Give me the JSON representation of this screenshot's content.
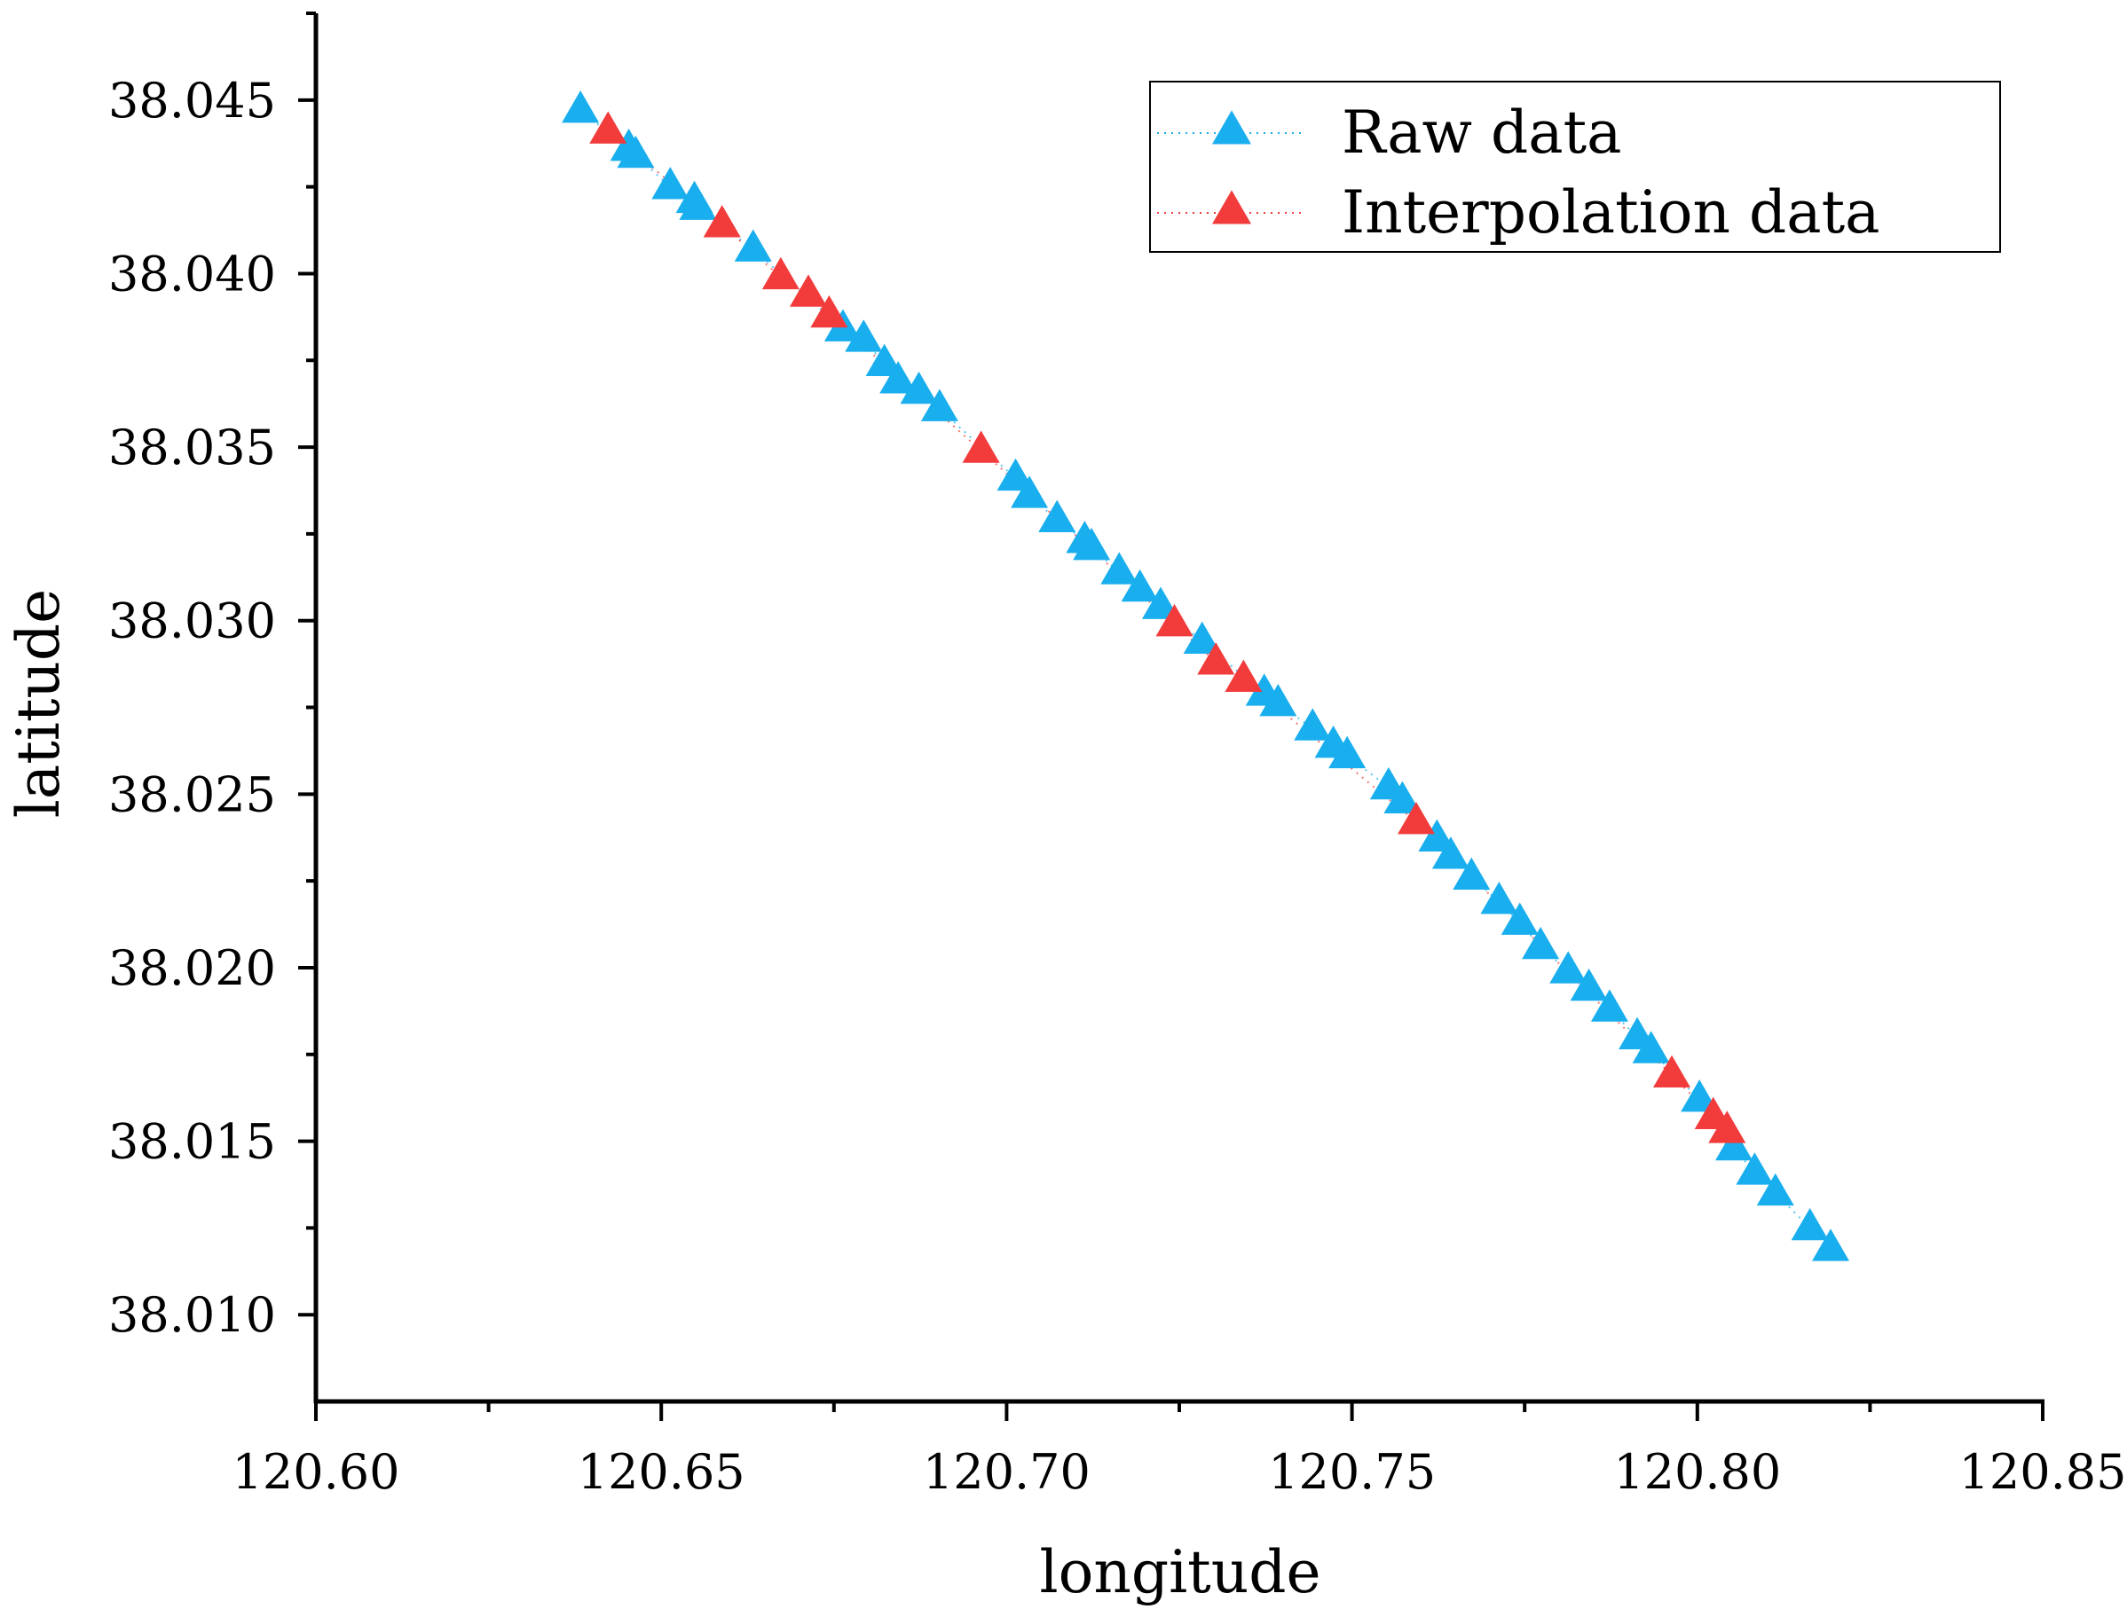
{
  "chart_data": {
    "type": "scatter",
    "xlabel": "longitude",
    "ylabel": "latitude",
    "xlim": [
      120.6,
      120.85
    ],
    "ylim": [
      38.0075,
      38.0475
    ],
    "x_ticks": [
      "120.60",
      "120.65",
      "120.70",
      "120.75",
      "120.80",
      "120.85"
    ],
    "y_ticks": [
      "38.010",
      "38.015",
      "38.020",
      "38.025",
      "38.030",
      "38.035",
      "38.040",
      "38.045"
    ],
    "grid": false,
    "legend_position": "top-right",
    "marker": "triangle",
    "series": [
      {
        "name": "Raw data",
        "color": "#19AEEE",
        "line_style": "dotted",
        "x": [
          120.6383,
          120.6453,
          120.6463,
          120.6513,
          120.6548,
          120.6553,
          120.6633,
          120.6763,
          120.6793,
          120.6823,
          120.6843,
          120.6873,
          120.6903,
          120.7013,
          120.7033,
          120.7073,
          120.7113,
          120.7123,
          120.7163,
          120.7193,
          120.7223,
          120.7283,
          120.7373,
          120.7393,
          120.7443,
          120.7473,
          120.7493,
          120.7553,
          120.7573,
          120.7623,
          120.7643,
          120.7673,
          120.7713,
          120.7743,
          120.7773,
          120.7813,
          120.7843,
          120.7873,
          120.7913,
          120.7933,
          120.8003,
          120.8053,
          120.8083,
          120.8113,
          120.8163,
          120.8193
        ],
        "y": [
          38.0447,
          38.0436,
          38.0434,
          38.0425,
          38.0421,
          38.0419,
          38.0407,
          38.0384,
          38.0381,
          38.0374,
          38.0369,
          38.0366,
          38.0361,
          38.0341,
          38.0336,
          38.0329,
          38.0323,
          38.0321,
          38.0314,
          38.0309,
          38.0304,
          38.0294,
          38.0279,
          38.0276,
          38.0269,
          38.0264,
          38.0261,
          38.0252,
          38.0248,
          38.0237,
          38.0232,
          38.0226,
          38.0219,
          38.0213,
          38.0206,
          38.0199,
          38.0194,
          38.0188,
          38.018,
          38.0176,
          38.0162,
          38.0148,
          38.0141,
          38.0135,
          38.0125,
          38.0119
        ]
      },
      {
        "name": "Interpolation data",
        "color": "#F23B3B",
        "line_style": "dotted",
        "x": [
          120.6423,
          120.6588,
          120.6673,
          120.6713,
          120.6743,
          120.6963,
          120.7243,
          120.7303,
          120.7343,
          120.7593,
          120.7963,
          120.8023,
          120.8043
        ],
        "y": [
          38.0441,
          38.0414,
          38.0399,
          38.0394,
          38.0388,
          38.0349,
          38.0299,
          38.0288,
          38.0283,
          38.0242,
          38.0169,
          38.0157,
          38.0153
        ]
      }
    ]
  }
}
